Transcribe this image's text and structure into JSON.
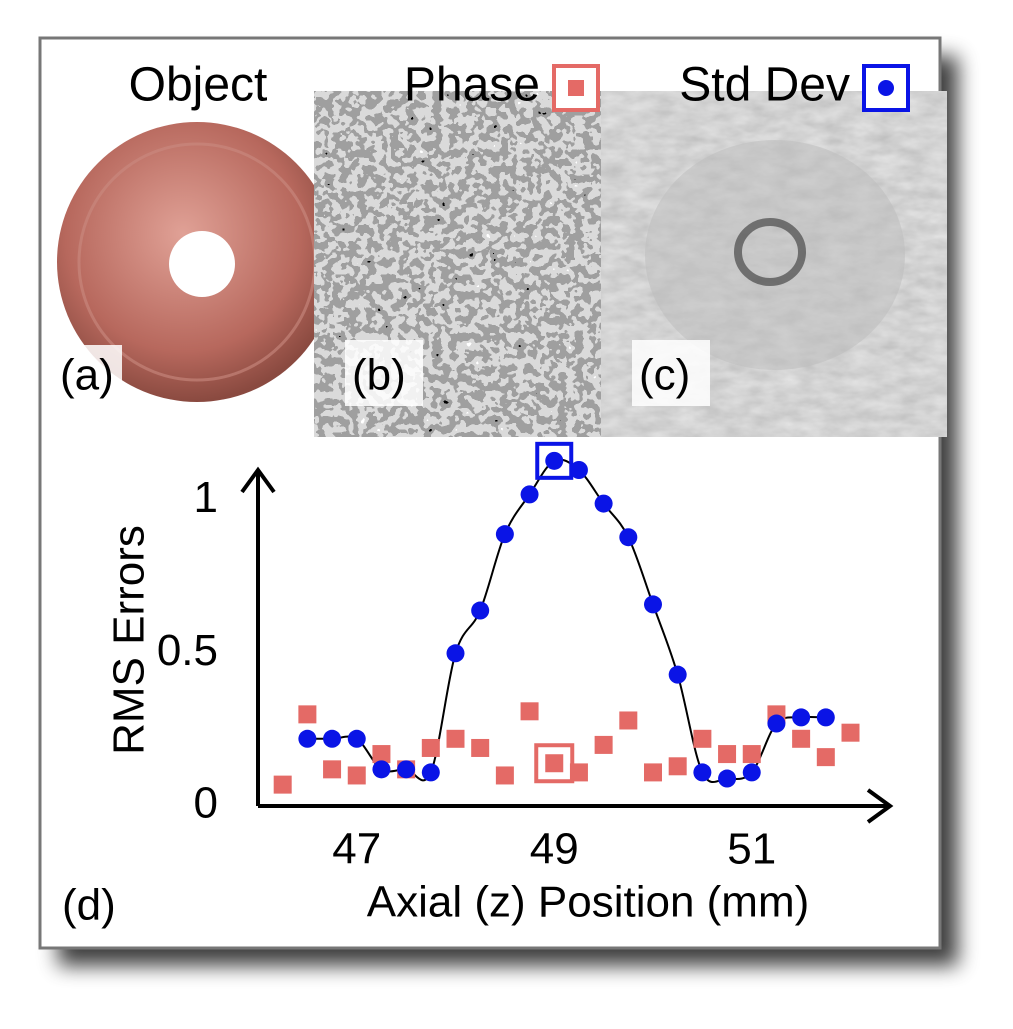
{
  "object_label": "Object",
  "panel_labels": [
    "(a)",
    "(b)",
    "(c)",
    "(d)"
  ],
  "chart_data": {
    "type": "scatter",
    "x_label": "Axial (z) Position (mm)",
    "y_label": "RMS Errors",
    "x": [
      46.25,
      46.5,
      46.75,
      47.0,
      47.25,
      47.5,
      47.75,
      48.0,
      48.25,
      48.5,
      48.75,
      49.0,
      49.25,
      49.5,
      49.75,
      50.0,
      50.25,
      50.5,
      50.75,
      51.0,
      51.25,
      51.5,
      51.75,
      52.0
    ],
    "series": [
      {
        "name": "Phase",
        "color": "#e46a66",
        "marker": "square",
        "values": [
          0.07,
          0.3,
          0.12,
          0.1,
          0.17,
          0.12,
          0.19,
          0.22,
          0.19,
          0.1,
          0.31,
          0.14,
          0.11,
          0.2,
          0.28,
          0.11,
          0.13,
          0.22,
          0.17,
          0.17,
          0.3,
          0.22,
          0.16,
          0.24
        ]
      },
      {
        "name": "Std Dev",
        "color": "#0a14e6",
        "marker": "circle",
        "fit": true,
        "values": [
          null,
          0.22,
          0.22,
          0.22,
          0.12,
          0.12,
          0.11,
          0.5,
          0.64,
          0.89,
          1.02,
          1.13,
          1.1,
          0.99,
          0.88,
          0.66,
          0.43,
          0.11,
          0.09,
          0.11,
          0.27,
          0.29,
          0.29,
          null
        ]
      }
    ],
    "highlight_index": 11,
    "xlim": [
      46,
      52.4
    ],
    "ylim": [
      0,
      1.1
    ],
    "xticks": [
      47,
      49,
      51
    ],
    "yticks": [
      0,
      0.5,
      1
    ]
  }
}
